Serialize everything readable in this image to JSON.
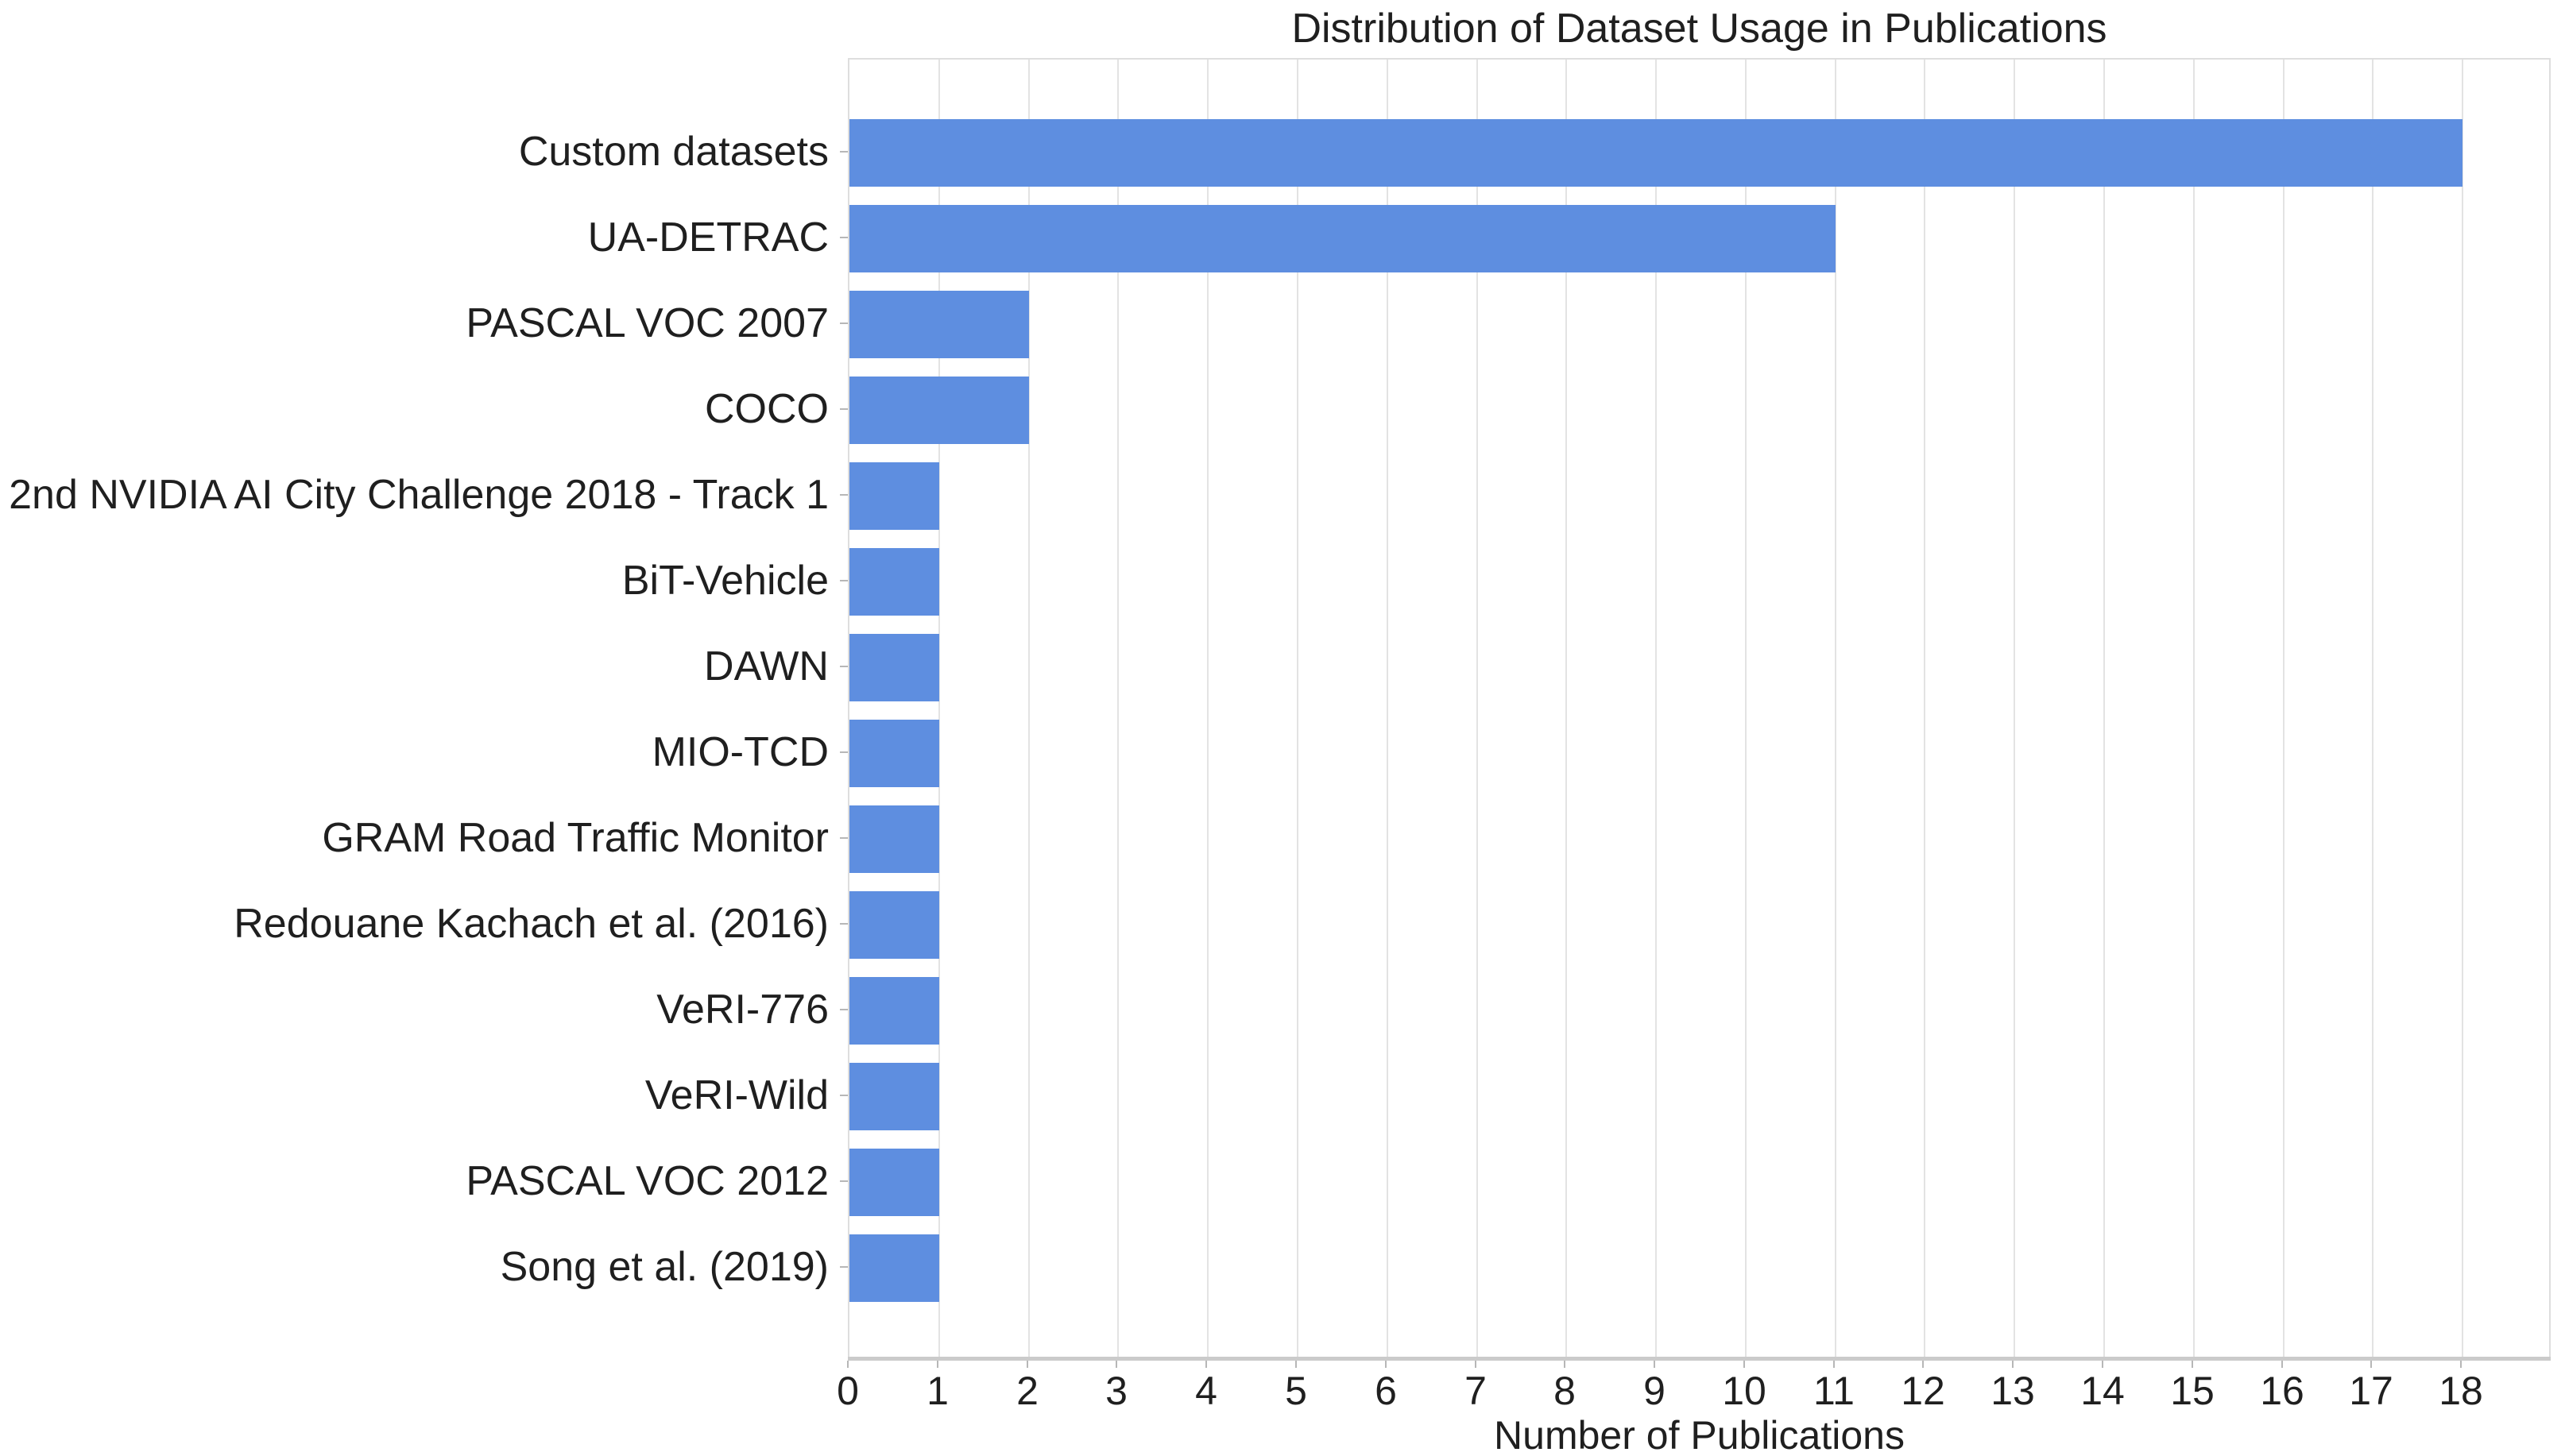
{
  "colors": {
    "bar": "#5E8EE0",
    "grid": "#E3E3E3",
    "axis_line": "#CBCBCB",
    "plot_border": "#DEDEDE",
    "tick": "#B7B7B7",
    "text": "#1F1F1F"
  },
  "chart_data": {
    "type": "bar",
    "orientation": "horizontal",
    "title": "Distribution of Dataset Usage in Publications",
    "xlabel": "Number of Publications",
    "ylabel": "",
    "categories": [
      "Custom datasets",
      "UA-DETRAC",
      "PASCAL VOC 2007",
      "COCO",
      "2nd NVIDIA AI City Challenge 2018 - Track 1",
      "BiT-Vehicle",
      "DAWN",
      "MIO-TCD",
      "GRAM Road Traffic Monitor",
      "Redouane Kachach et al. (2016)",
      "VeRI-776",
      "VeRI-Wild",
      "PASCAL VOC 2012",
      "Song et al. (2019)"
    ],
    "values": [
      18,
      11,
      2,
      2,
      1,
      1,
      1,
      1,
      1,
      1,
      1,
      1,
      1,
      1
    ],
    "xlim": [
      0,
      19
    ],
    "xticks": [
      0,
      1,
      2,
      3,
      4,
      5,
      6,
      7,
      8,
      9,
      10,
      11,
      12,
      13,
      14,
      15,
      16,
      17,
      18
    ],
    "grid": "vertical",
    "legend": "none"
  }
}
